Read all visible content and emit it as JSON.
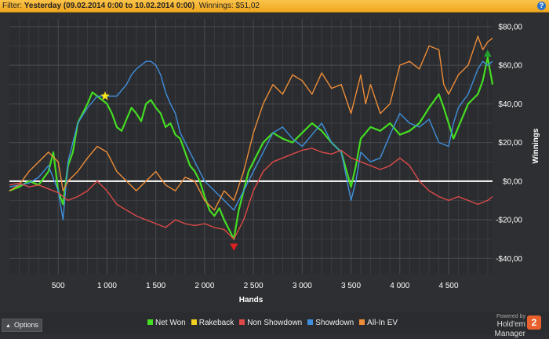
{
  "filter": {
    "prefix": "Filter: ",
    "range": "Yesterday (09.02.2014 0:00 to 10.02.2014 0:00)",
    "winnings": "Winnings: $51,02",
    "help": "?"
  },
  "options_label": "Options",
  "brand": {
    "powered": "Powered by",
    "name": "Hold'em Manager",
    "logo": "2"
  },
  "colors": {
    "net_won": "#44dd22",
    "rakeback": "#f2ce1e",
    "non_showdown": "#dd4a48",
    "showdown": "#3f8fdc",
    "all_in_ev": "#ee8d38",
    "zero_line": "#ffffff",
    "background": "#2e2f32"
  },
  "chart_data": {
    "type": "line",
    "xlabel": "Hands",
    "ylabel": "Winnings",
    "xlim": [
      0,
      4950
    ],
    "ylim": [
      -48,
      84
    ],
    "x_ticks": [
      500,
      1000,
      1500,
      2000,
      2500,
      3000,
      3500,
      4000,
      4500
    ],
    "x_tick_labels": [
      "500",
      "1 000",
      "1 500",
      "2 000",
      "2 500",
      "3 000",
      "3 500",
      "4 000",
      "4 500"
    ],
    "y_ticks": [
      -40,
      -20,
      0,
      20,
      40,
      60,
      80
    ],
    "y_tick_labels": [
      "-$40,00",
      "-$20,00",
      "$0,00",
      "$20,00",
      "$40,00",
      "$60,00",
      "$80,00"
    ],
    "grid": true,
    "legend_position": "bottom",
    "markers": [
      {
        "kind": "star",
        "x": 980,
        "y": 44,
        "color": "#f5e51a"
      },
      {
        "kind": "down-triangle",
        "x": 2300,
        "y": -34,
        "color": "#e02020"
      },
      {
        "kind": "up-triangle",
        "x": 4900,
        "y": 66,
        "color": "#22a030"
      }
    ],
    "series": [
      {
        "name": "Net Won",
        "color": "#44dd22",
        "x": [
          0,
          100,
          200,
          300,
          400,
          450,
          500,
          550,
          600,
          650,
          700,
          800,
          850,
          900,
          950,
          1000,
          1050,
          1100,
          1150,
          1200,
          1250,
          1300,
          1350,
          1400,
          1450,
          1500,
          1550,
          1600,
          1650,
          1700,
          1750,
          1800,
          1850,
          1900,
          1950,
          2000,
          2050,
          2100,
          2150,
          2200,
          2250,
          2300,
          2350,
          2400,
          2450,
          2500,
          2600,
          2700,
          2800,
          2900,
          3000,
          3100,
          3200,
          3300,
          3400,
          3500,
          3550,
          3600,
          3700,
          3800,
          3900,
          4000,
          4100,
          4200,
          4300,
          4400,
          4450,
          4500,
          4550,
          4600,
          4700,
          4800,
          4850,
          4900,
          4950
        ],
        "y": [
          -5,
          -3,
          0,
          -2,
          5,
          15,
          -5,
          -12,
          8,
          15,
          30,
          40,
          46,
          44,
          42,
          40,
          35,
          28,
          26,
          32,
          38,
          35,
          31,
          40,
          42,
          38,
          35,
          28,
          30,
          24,
          22,
          15,
          8,
          5,
          0,
          -8,
          -15,
          -18,
          -14,
          -20,
          -25,
          -30,
          -15,
          -5,
          5,
          10,
          20,
          25,
          22,
          20,
          25,
          30,
          26,
          20,
          15,
          -3,
          8,
          22,
          28,
          26,
          30,
          24,
          26,
          30,
          38,
          45,
          38,
          30,
          22,
          28,
          40,
          45,
          52,
          64,
          50
        ]
      },
      {
        "name": "Showdown",
        "color": "#3f8fdc",
        "x": [
          0,
          100,
          200,
          300,
          400,
          500,
          550,
          600,
          650,
          700,
          800,
          900,
          1000,
          1100,
          1200,
          1250,
          1300,
          1400,
          1450,
          1500,
          1550,
          1600,
          1650,
          1700,
          1750,
          1800,
          1850,
          1900,
          2000,
          2100,
          2200,
          2300,
          2400,
          2500,
          2600,
          2700,
          2800,
          2900,
          3000,
          3100,
          3200,
          3300,
          3400,
          3500,
          3550,
          3600,
          3700,
          3800,
          3900,
          4000,
          4100,
          4200,
          4300,
          4400,
          4500,
          4550,
          4600,
          4700,
          4800,
          4850,
          4900,
          4950
        ],
        "y": [
          -3,
          -2,
          -1,
          2,
          8,
          -5,
          -20,
          10,
          20,
          30,
          38,
          44,
          44,
          44,
          50,
          55,
          58,
          62,
          62,
          60,
          55,
          46,
          40,
          35,
          25,
          20,
          15,
          10,
          0,
          -5,
          -10,
          -15,
          -5,
          5,
          15,
          25,
          28,
          22,
          18,
          24,
          30,
          20,
          15,
          -10,
          0,
          15,
          10,
          12,
          24,
          35,
          30,
          28,
          32,
          20,
          18,
          30,
          38,
          45,
          58,
          62,
          60,
          62
        ]
      },
      {
        "name": "All-In EV",
        "color": "#ee8d38",
        "x": [
          0,
          100,
          200,
          300,
          400,
          500,
          550,
          600,
          700,
          800,
          900,
          1000,
          1050,
          1100,
          1200,
          1300,
          1400,
          1500,
          1600,
          1700,
          1800,
          1900,
          2000,
          2100,
          2200,
          2300,
          2400,
          2500,
          2600,
          2700,
          2800,
          2900,
          3000,
          3100,
          3200,
          3300,
          3400,
          3500,
          3550,
          3600,
          3650,
          3700,
          3800,
          3900,
          4000,
          4100,
          4200,
          4300,
          4400,
          4450,
          4500,
          4600,
          4700,
          4800,
          4850,
          4900,
          4950
        ],
        "y": [
          -5,
          -2,
          5,
          10,
          15,
          10,
          -5,
          0,
          5,
          12,
          18,
          15,
          10,
          5,
          0,
          -5,
          0,
          5,
          -2,
          -5,
          2,
          0,
          -10,
          -15,
          -5,
          -10,
          5,
          25,
          40,
          50,
          45,
          55,
          52,
          45,
          56,
          48,
          50,
          35,
          45,
          55,
          40,
          50,
          35,
          40,
          60,
          62,
          58,
          70,
          68,
          50,
          45,
          55,
          60,
          75,
          68,
          72,
          74
        ]
      },
      {
        "name": "Non Showdown",
        "color": "#dd4a48",
        "x": [
          0,
          100,
          200,
          300,
          400,
          500,
          600,
          700,
          800,
          900,
          1000,
          1100,
          1200,
          1300,
          1400,
          1500,
          1600,
          1700,
          1800,
          1900,
          2000,
          2100,
          2200,
          2300,
          2400,
          2500,
          2600,
          2700,
          2800,
          2900,
          3000,
          3100,
          3200,
          3300,
          3400,
          3500,
          3600,
          3700,
          3800,
          3900,
          4000,
          4100,
          4200,
          4300,
          4400,
          4500,
          4600,
          4700,
          4800,
          4900,
          4950
        ],
        "y": [
          -2,
          -1,
          -3,
          -2,
          -4,
          -6,
          -10,
          -8,
          -5,
          0,
          -5,
          -12,
          -15,
          -18,
          -20,
          -22,
          -24,
          -20,
          -22,
          -23,
          -22,
          -24,
          -25,
          -30,
          -20,
          -5,
          5,
          10,
          12,
          14,
          16,
          17,
          15,
          14,
          16,
          12,
          10,
          8,
          6,
          8,
          12,
          8,
          0,
          -5,
          -8,
          -10,
          -8,
          -10,
          -12,
          -10,
          -8
        ]
      },
      {
        "name": "Rakeback",
        "color": "#f2ce1e",
        "x": [
          0,
          4950
        ],
        "y": [
          0,
          0
        ]
      }
    ]
  }
}
